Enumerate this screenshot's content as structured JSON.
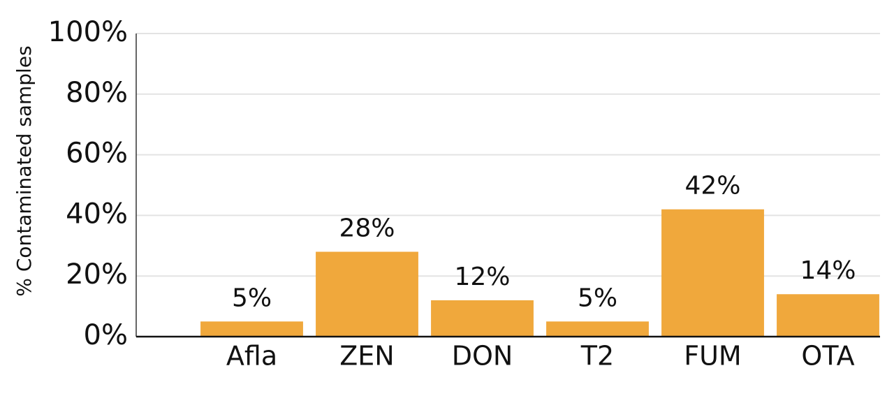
{
  "chart_data": {
    "type": "bar",
    "y_label": "% Contaminated samples",
    "categories": [
      "Afla",
      "ZEN",
      "DON",
      "T2",
      "FUM",
      "OTA"
    ],
    "values": [
      5,
      28,
      12,
      5,
      42,
      14
    ],
    "value_labels": [
      "5%",
      "28%",
      "12%",
      "5%",
      "42%",
      "14%"
    ],
    "color": "#f0a83c",
    "ylim": [
      0,
      100
    ],
    "yticks": [
      {
        "value": 0,
        "label": "0%"
      },
      {
        "value": 20,
        "label": "20%"
      },
      {
        "value": 40,
        "label": "40%"
      },
      {
        "value": 60,
        "label": "60%"
      },
      {
        "value": 80,
        "label": "80%"
      },
      {
        "value": 100,
        "label": "100%"
      }
    ],
    "grid": true
  }
}
